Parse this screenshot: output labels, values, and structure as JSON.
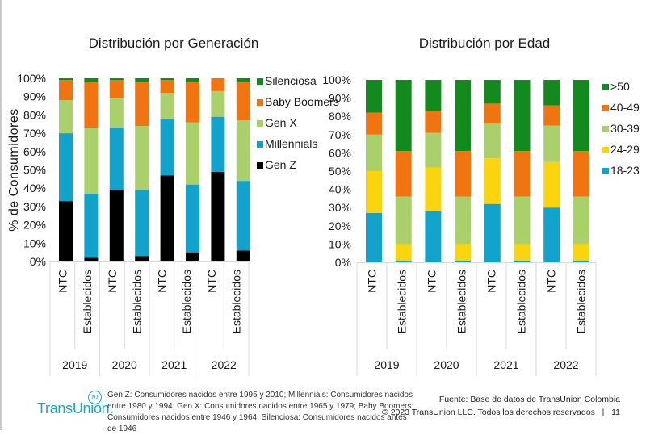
{
  "chart_data": [
    {
      "type": "bar",
      "stacked": true,
      "title": "Distribución por Generación",
      "xlabel": "",
      "ylabel": "% de Consumidores",
      "ylim": [
        0,
        100
      ],
      "yticks": [
        "0%",
        "10%",
        "20%",
        "30%",
        "40%",
        "50%",
        "60%",
        "70%",
        "80%",
        "90%",
        "100%"
      ],
      "grid": false,
      "legend_position": "right",
      "groups": [
        "2019",
        "2020",
        "2021",
        "2022"
      ],
      "categories": [
        "NTC",
        "Establecidos",
        "NTC",
        "Establecidos",
        "NTC",
        "Establecidos",
        "NTC",
        "Establecidos"
      ],
      "series": [
        {
          "name": "Gen Z",
          "color": "#000000",
          "values": [
            33,
            2,
            39,
            3,
            47,
            5,
            49,
            6
          ]
        },
        {
          "name": "Millennials",
          "color": "#12a3cc",
          "values": [
            37,
            35,
            34,
            36,
            31,
            37,
            30,
            38
          ]
        },
        {
          "name": "Gen X",
          "color": "#a9d06a",
          "values": [
            18,
            36,
            16,
            35,
            14,
            34,
            14,
            33
          ]
        },
        {
          "name": "Baby Boomers",
          "color": "#f07511",
          "values": [
            11,
            25,
            10,
            24,
            7,
            22,
            7,
            21
          ]
        },
        {
          "name": "Silenciosa",
          "color": "#138a1e",
          "values": [
            1,
            2,
            1,
            2,
            1,
            2,
            0,
            2
          ]
        }
      ],
      "legend_order": [
        "Silenciosa",
        "Baby Boomers",
        "Gen X",
        "Millennials",
        "Gen Z"
      ]
    },
    {
      "type": "bar",
      "stacked": true,
      "title": "Distribución por Edad",
      "xlabel": "",
      "ylabel": "",
      "ylim": [
        0,
        100
      ],
      "yticks": [
        "0%",
        "10%",
        "20%",
        "30%",
        "40%",
        "50%",
        "60%",
        "70%",
        "80%",
        "90%",
        "100%"
      ],
      "grid": false,
      "legend_position": "right",
      "groups": [
        "2019",
        "2020",
        "2021",
        "2022"
      ],
      "categories": [
        "NTC",
        "Establecidos",
        "NTC",
        "Establecidos",
        "NTC",
        "Establecidos",
        "NTC",
        "Establecidos"
      ],
      "series": [
        {
          "name": "18-23",
          "color": "#12a3cc",
          "values": [
            27,
            1,
            28,
            1,
            32,
            1,
            30,
            1
          ]
        },
        {
          "name": "24-29",
          "color": "#f9d40f",
          "values": [
            23,
            9,
            24,
            9,
            25,
            9,
            25,
            9
          ]
        },
        {
          "name": "30-39",
          "color": "#a9d06a",
          "values": [
            20,
            26,
            19,
            26,
            19,
            26,
            20,
            26
          ]
        },
        {
          "name": "40-49",
          "color": "#f07511",
          "values": [
            12,
            25,
            12,
            25,
            11,
            25,
            11,
            25
          ]
        },
        {
          "name": ">50",
          "color": "#138a1e",
          "values": [
            18,
            39,
            17,
            39,
            13,
            39,
            14,
            39
          ]
        }
      ],
      "legend_order": [
        ">50",
        "40-49",
        "30-39",
        "24-29",
        "18-23"
      ]
    }
  ],
  "footer": {
    "logo_text": "TransUnion.",
    "logo_mark": "tu",
    "notes": "Gen Z: Consumidores nacidos entre 1995 y 2010; Millennials: Consumidores nacidos entre 1980 y 1994; Gen X: Consumidores nacidos entre 1965 y 1979; Baby Boomers: Consumidores nacidos entre 1946 y 1964; Silenciosa: Consumidores nacidos antes de 1946",
    "source": "Fuente: Base de datos de TransUnion Colombia",
    "copyright": "© 2023 TransUnion LLC. Todos los derechos reservados",
    "separator": "|",
    "page_number": "11"
  }
}
